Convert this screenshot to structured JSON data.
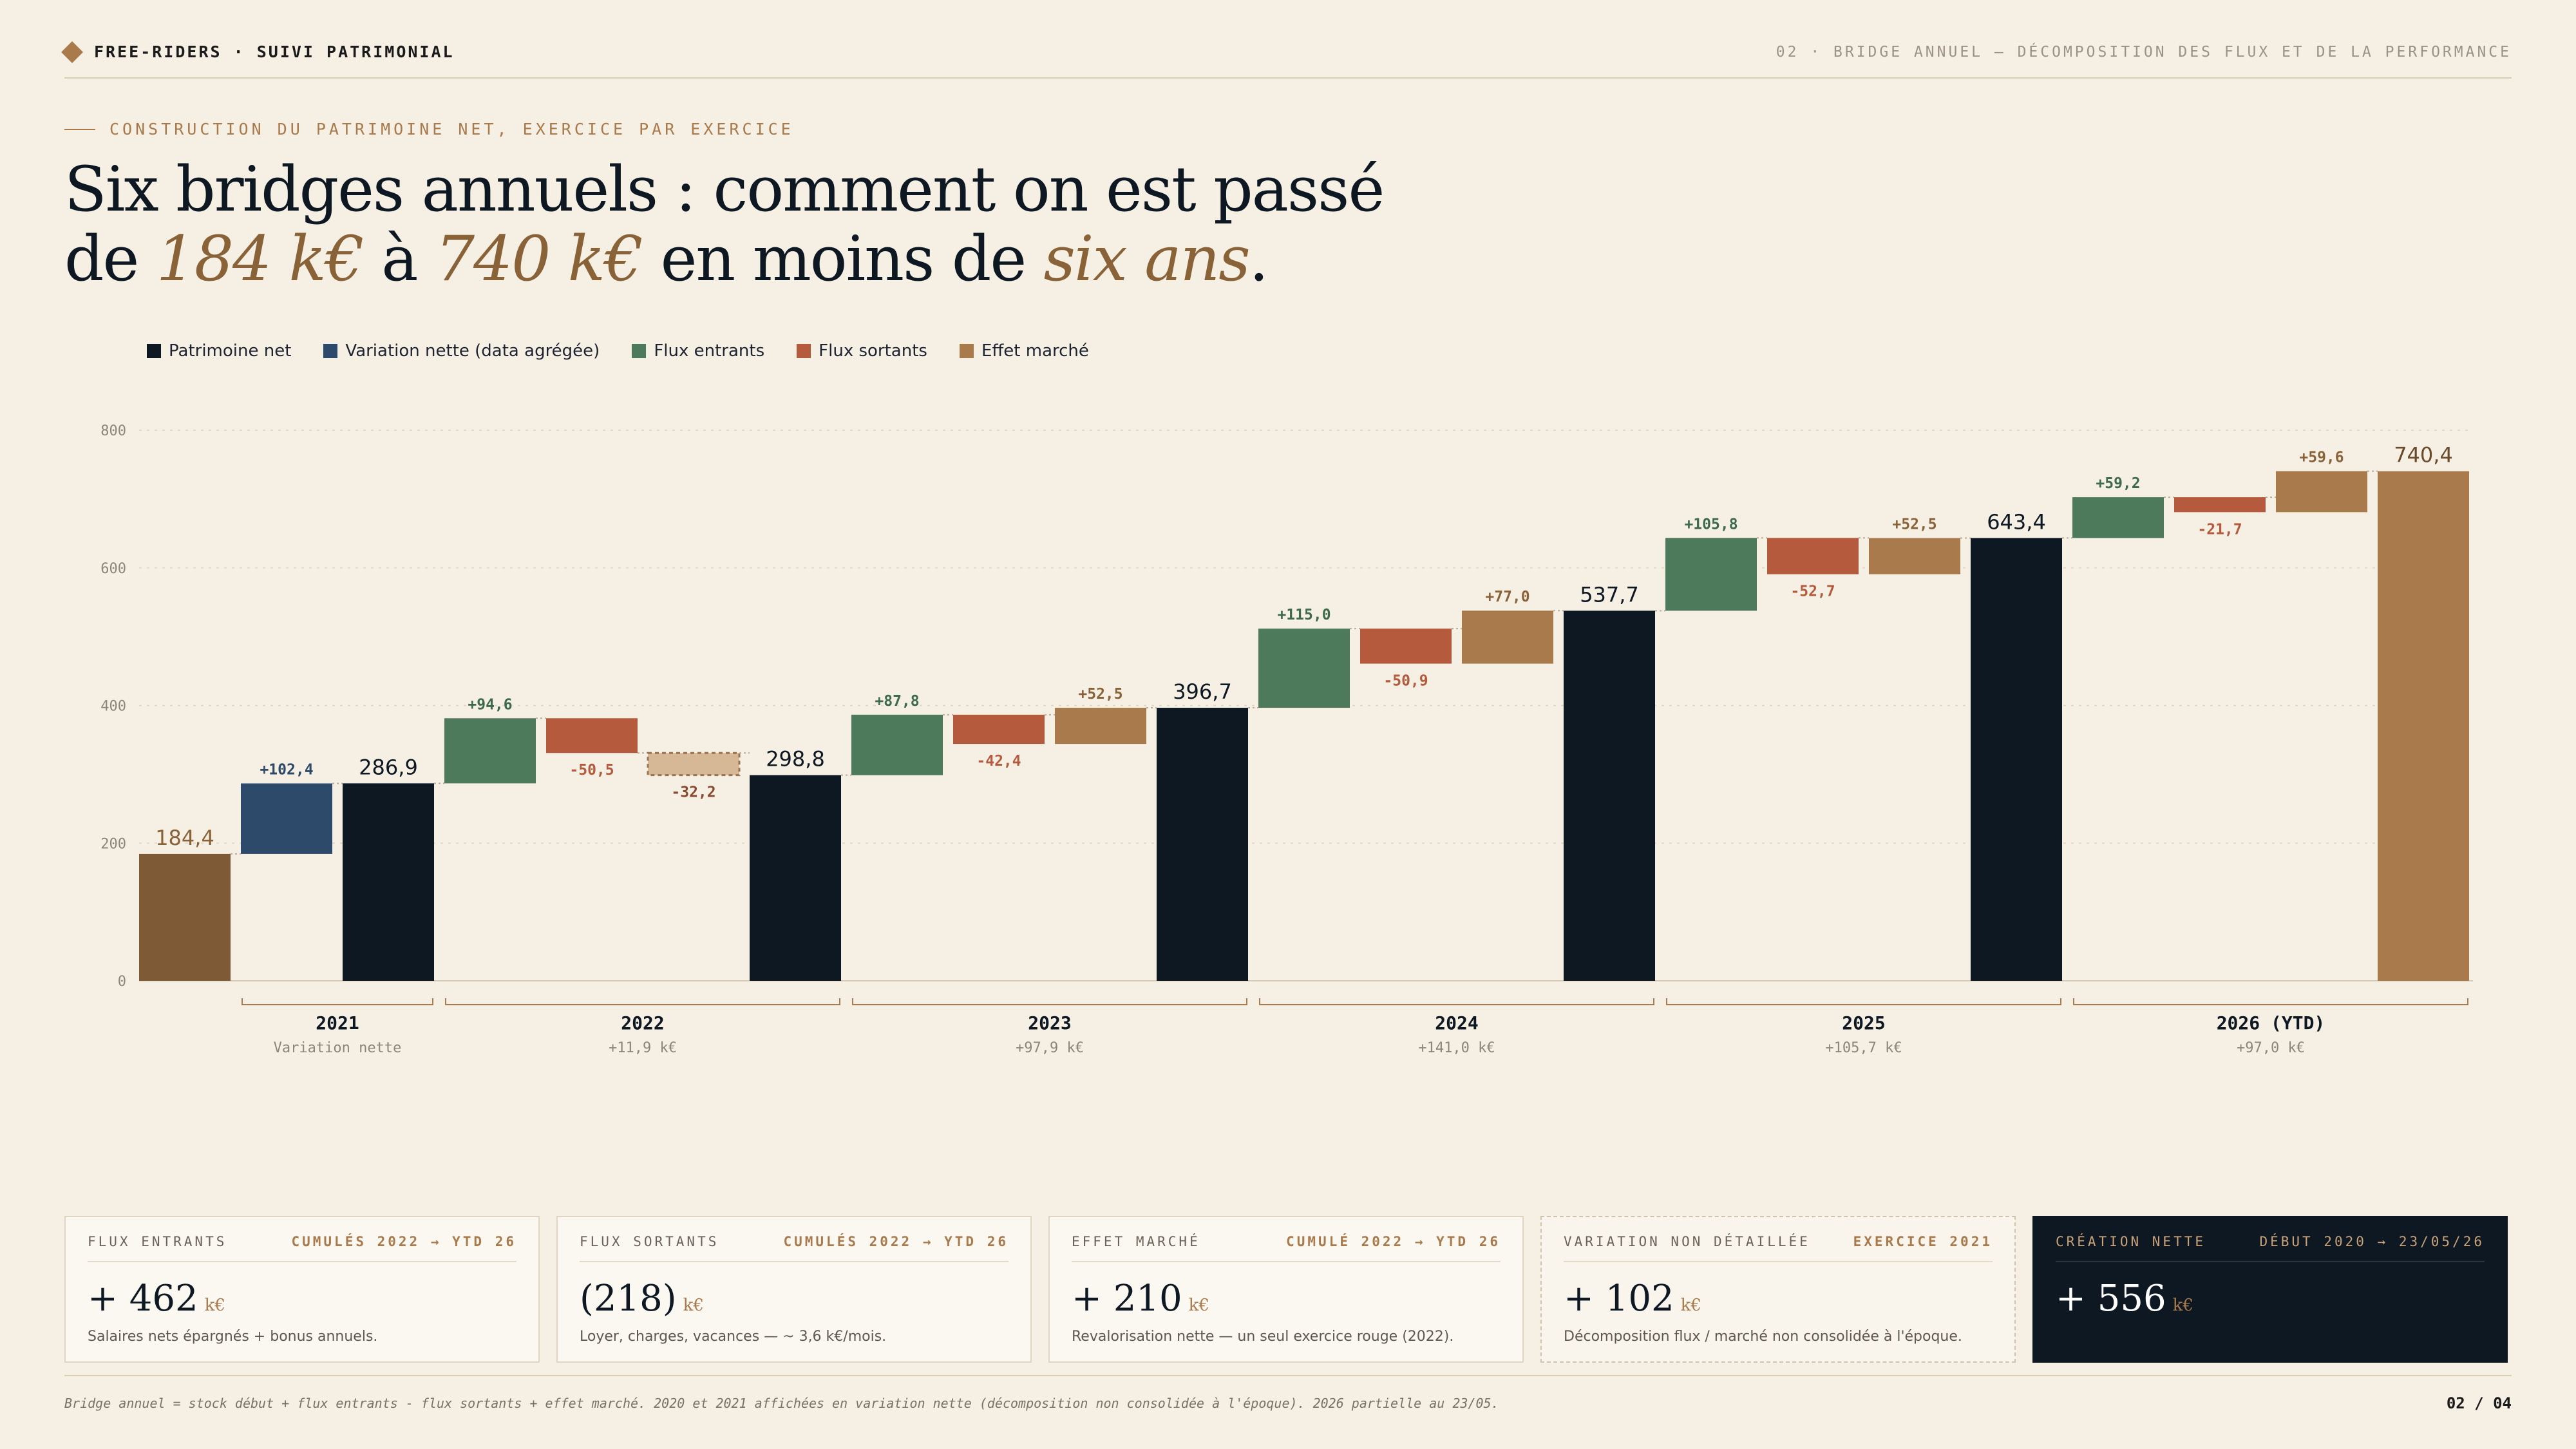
{
  "header": {
    "brand": "FREE-RIDERS · SUIVI PATRIMONIAL",
    "section": "02 · BRIDGE ANNUEL — DÉCOMPOSITION DES FLUX ET DE LA PERFORMANCE"
  },
  "eyebrow": "CONSTRUCTION DU PATRIMOINE NET, EXERCICE PAR EXERCICE",
  "title": {
    "line1": "Six bridges annuels : comment on est passé",
    "de": "de ",
    "v1": "184 k€",
    "a": " à ",
    "v2": "740 k€",
    "mid": " en moins de ",
    "v3": "six ans",
    "end": "."
  },
  "colors": {
    "net": "#0d1822",
    "variation": "#2e4a6b",
    "inflow": "#4e7a5c",
    "outflow": "#b55a3c",
    "market": "#a97a4c",
    "start": "#7e5a36",
    "market_neg": "#d7b896"
  },
  "legend": [
    {
      "label": "Patrimoine net",
      "color": "#0d1822"
    },
    {
      "label": "Variation nette (data agrégée)",
      "color": "#2e4a6b"
    },
    {
      "label": "Flux entrants",
      "color": "#4e7a5c"
    },
    {
      "label": "Flux sortants",
      "color": "#b55a3c"
    },
    {
      "label": "Effet marché",
      "color": "#a97a4c"
    }
  ],
  "chart_data": {
    "type": "bar",
    "subtype": "waterfall",
    "ylim": [
      0,
      800
    ],
    "yticks": [
      0,
      200,
      400,
      600,
      800
    ],
    "grid": true,
    "bars": [
      {
        "kind": "start",
        "base": 0,
        "top": 184.4,
        "label": "184,4"
      },
      {
        "kind": "variation",
        "base": 184.4,
        "top": 286.8,
        "label": "+102,4"
      },
      {
        "kind": "net",
        "base": 0,
        "top": 286.9,
        "label": "286,9"
      },
      {
        "kind": "inflow",
        "base": 286.9,
        "top": 381.5,
        "label": "+94,6"
      },
      {
        "kind": "outflow",
        "base": 331.0,
        "top": 381.5,
        "label": "-50,5"
      },
      {
        "kind": "market_neg",
        "base": 298.8,
        "top": 331.0,
        "label": "-32,2"
      },
      {
        "kind": "net",
        "base": 0,
        "top": 298.8,
        "label": "298,8"
      },
      {
        "kind": "inflow",
        "base": 298.8,
        "top": 386.6,
        "label": "+87,8"
      },
      {
        "kind": "outflow",
        "base": 344.2,
        "top": 386.6,
        "label": "-42,4"
      },
      {
        "kind": "market",
        "base": 344.2,
        "top": 396.7,
        "label": "+52,5"
      },
      {
        "kind": "net",
        "base": 0,
        "top": 396.7,
        "label": "396,7"
      },
      {
        "kind": "inflow",
        "base": 396.7,
        "top": 511.7,
        "label": "+115,0"
      },
      {
        "kind": "outflow",
        "base": 460.8,
        "top": 511.7,
        "label": "-50,9"
      },
      {
        "kind": "market",
        "base": 460.8,
        "top": 537.8,
        "label": "+77,0"
      },
      {
        "kind": "net",
        "base": 0,
        "top": 537.7,
        "label": "537,7"
      },
      {
        "kind": "inflow",
        "base": 537.7,
        "top": 643.5,
        "label": "+105,8"
      },
      {
        "kind": "outflow",
        "base": 590.8,
        "top": 643.5,
        "label": "-52,7"
      },
      {
        "kind": "market",
        "base": 590.8,
        "top": 643.3,
        "label": "+52,5"
      },
      {
        "kind": "net",
        "base": 0,
        "top": 643.4,
        "label": "643,4"
      },
      {
        "kind": "inflow",
        "base": 643.4,
        "top": 702.6,
        "label": "+59,2"
      },
      {
        "kind": "outflow",
        "base": 680.9,
        "top": 702.6,
        "label": "-21,7"
      },
      {
        "kind": "market",
        "base": 680.9,
        "top": 740.5,
        "label": "+59,6"
      },
      {
        "kind": "end",
        "base": 0,
        "top": 740.4,
        "label": "740,4"
      }
    ],
    "groups": [
      {
        "label": "2021",
        "sub": "Variation nette",
        "from": 1,
        "to": 2
      },
      {
        "label": "2022",
        "sub": "+11,9 k€",
        "from": 3,
        "to": 6
      },
      {
        "label": "2023",
        "sub": "+97,9 k€",
        "from": 7,
        "to": 10
      },
      {
        "label": "2024",
        "sub": "+141,0 k€",
        "from": 11,
        "to": 14
      },
      {
        "label": "2025",
        "sub": "+105,7 k€",
        "from": 15,
        "to": 18
      },
      {
        "label": "2026 (YTD)",
        "sub": "+97,0 k€",
        "from": 19,
        "to": 22
      }
    ]
  },
  "cards": [
    {
      "title": "FLUX ENTRANTS",
      "period": "CUMULÉS 2022 → YTD 26",
      "value": "+ 462",
      "unit": "k€",
      "note": "Salaires nets épargnés + bonus annuels."
    },
    {
      "title": "FLUX SORTANTS",
      "period": "CUMULÉS 2022 → YTD 26",
      "value": "(218)",
      "unit": "k€",
      "note": "Loyer, charges, vacances — ~ 3,6 k€/mois."
    },
    {
      "title": "EFFET MARCHÉ",
      "period": "CUMULÉ 2022 → YTD 26",
      "value": "+ 210",
      "unit": "k€",
      "note": "Revalorisation nette — un seul exercice rouge (2022)."
    },
    {
      "title": "VARIATION NON DÉTAILLÉE",
      "period": "EXERCICE 2021",
      "value": "+ 102",
      "unit": "k€",
      "note": "Décomposition flux / marché non consolidée à l'époque."
    },
    {
      "title": "CRÉATION NETTE",
      "period": "DÉBUT 2020 → 23/05/26",
      "value": "+ 556",
      "unit": "k€",
      "note": ""
    }
  ],
  "footer": {
    "note": "Bridge annuel = stock début + flux entrants - flux sortants + effet marché. 2020 et 2021 affichées en variation nette (décomposition non consolidée à l'époque). 2026 partielle au 23/05.",
    "page": "02 / 04"
  }
}
